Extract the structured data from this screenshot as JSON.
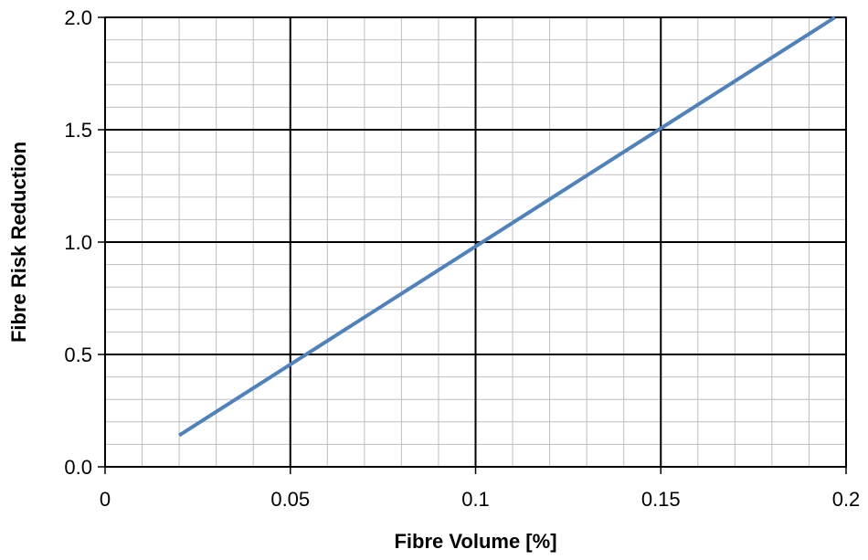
{
  "chart_data": {
    "type": "line",
    "title": "",
    "xlabel": "Fibre Volume [%]",
    "ylabel": "Fibre Risk Reduction",
    "xlim": [
      0,
      0.2
    ],
    "ylim": [
      0,
      2.0
    ],
    "x_ticks": [
      0,
      0.05,
      0.1,
      0.15,
      0.2
    ],
    "x_tick_labels": [
      "0",
      "0.05",
      "0.1",
      "0.15",
      "0.2"
    ],
    "y_ticks": [
      0,
      0.5,
      1.0,
      1.5,
      2.0
    ],
    "y_tick_labels": [
      "0.0",
      "0.5",
      "1.0",
      "1.5",
      "2.0"
    ],
    "grid": true,
    "legend": "none",
    "series": [
      {
        "color": "#4f81bd",
        "x": [
          0.02,
          0.197
        ],
        "y": [
          0.14,
          2.0
        ]
      }
    ]
  }
}
